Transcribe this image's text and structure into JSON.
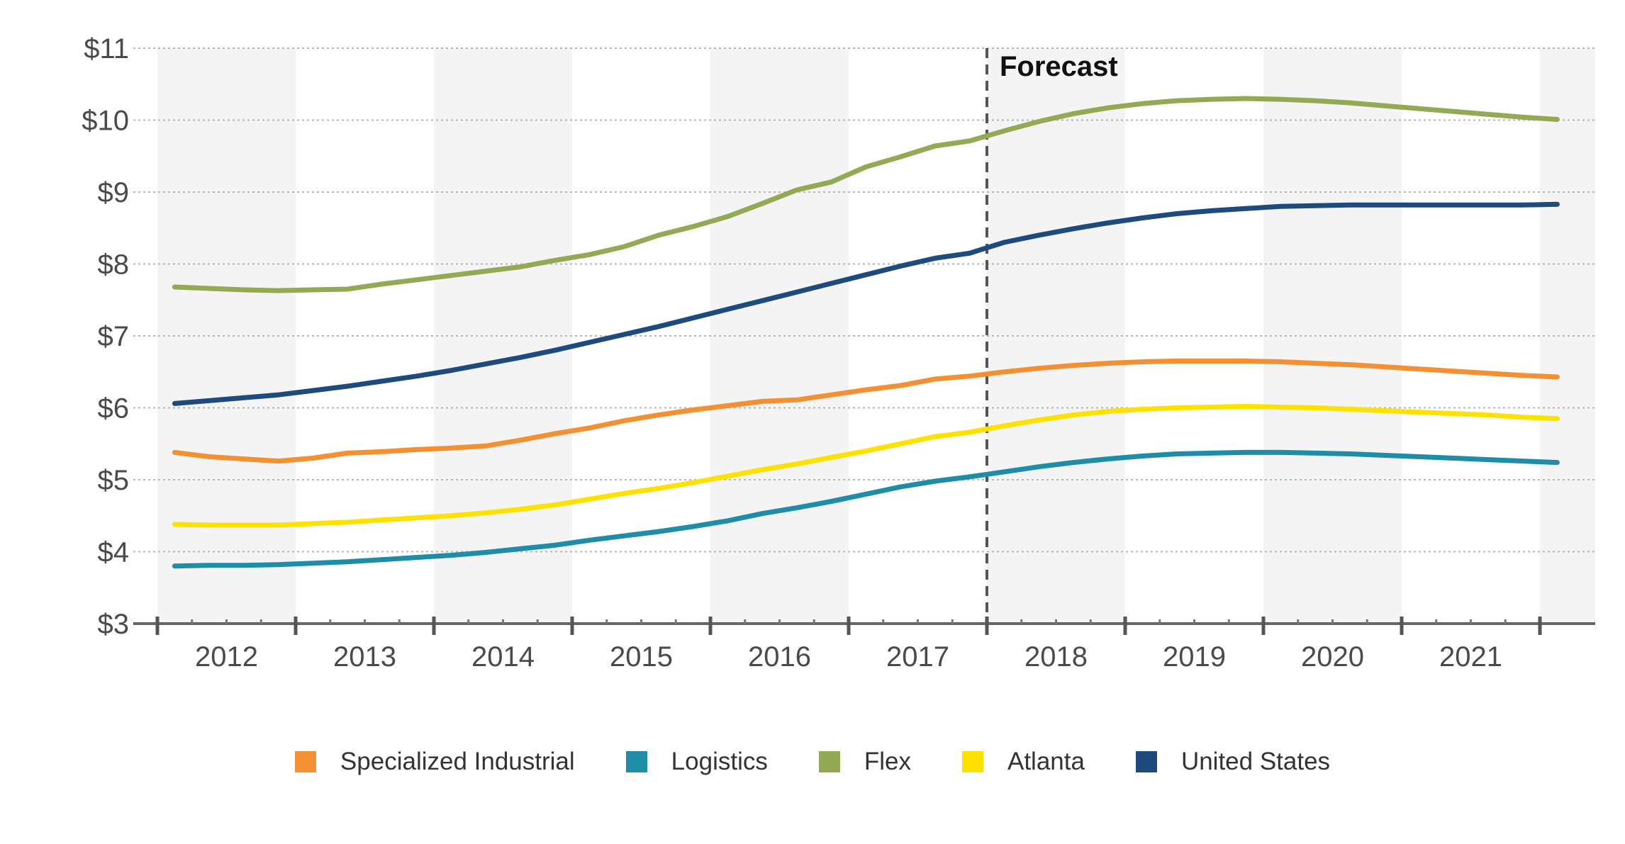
{
  "chart_data": {
    "type": "line",
    "title": "",
    "xlabel": "",
    "ylabel": "",
    "ylim": [
      3,
      11
    ],
    "y_ticks": [
      "$3",
      "$4",
      "$5",
      "$6",
      "$7",
      "$8",
      "$9",
      "$10",
      "$11"
    ],
    "x_categories": [
      "2012",
      "2013",
      "2014",
      "2015",
      "2016",
      "2017",
      "2018",
      "2019",
      "2020",
      "2021"
    ],
    "x_range": [
      2011.5,
      2021.9
    ],
    "grid": "horizontal dotted",
    "alternating_year_bands": true,
    "forecast": {
      "label": "Forecast",
      "start": 2017.5
    },
    "legend_position": "bottom",
    "series": [
      {
        "name": "Specialized Industrial",
        "color": "#F39034",
        "points": [
          [
            2011.625,
            5.38
          ],
          [
            2011.875,
            5.32
          ],
          [
            2012.125,
            5.29
          ],
          [
            2012.375,
            5.26
          ],
          [
            2012.625,
            5.3
          ],
          [
            2012.875,
            5.37
          ],
          [
            2013.125,
            5.39
          ],
          [
            2013.375,
            5.42
          ],
          [
            2013.625,
            5.44
          ],
          [
            2013.875,
            5.47
          ],
          [
            2014.125,
            5.55
          ],
          [
            2014.375,
            5.64
          ],
          [
            2014.625,
            5.72
          ],
          [
            2014.875,
            5.82
          ],
          [
            2015.125,
            5.9
          ],
          [
            2015.375,
            5.97
          ],
          [
            2015.625,
            6.03
          ],
          [
            2015.875,
            6.09
          ],
          [
            2016.125,
            6.11
          ],
          [
            2016.375,
            6.18
          ],
          [
            2016.625,
            6.25
          ],
          [
            2016.875,
            6.31
          ],
          [
            2017.125,
            6.4
          ],
          [
            2017.375,
            6.44
          ],
          [
            2017.625,
            6.5
          ],
          [
            2017.875,
            6.55
          ],
          [
            2018.125,
            6.59
          ],
          [
            2018.375,
            6.62
          ],
          [
            2018.625,
            6.64
          ],
          [
            2018.875,
            6.65
          ],
          [
            2019.125,
            6.65
          ],
          [
            2019.375,
            6.65
          ],
          [
            2019.625,
            6.64
          ],
          [
            2019.875,
            6.62
          ],
          [
            2020.125,
            6.6
          ],
          [
            2020.375,
            6.57
          ],
          [
            2020.625,
            6.54
          ],
          [
            2020.875,
            6.51
          ],
          [
            2021.125,
            6.48
          ],
          [
            2021.375,
            6.45
          ],
          [
            2021.625,
            6.43
          ]
        ]
      },
      {
        "name": "Logistics",
        "color": "#1F8CA8",
        "points": [
          [
            2011.625,
            3.8
          ],
          [
            2011.875,
            3.81
          ],
          [
            2012.125,
            3.81
          ],
          [
            2012.375,
            3.82
          ],
          [
            2012.625,
            3.84
          ],
          [
            2012.875,
            3.86
          ],
          [
            2013.125,
            3.89
          ],
          [
            2013.375,
            3.92
          ],
          [
            2013.625,
            3.95
          ],
          [
            2013.875,
            3.99
          ],
          [
            2014.125,
            4.04
          ],
          [
            2014.375,
            4.09
          ],
          [
            2014.625,
            4.16
          ],
          [
            2014.875,
            4.22
          ],
          [
            2015.125,
            4.28
          ],
          [
            2015.375,
            4.35
          ],
          [
            2015.625,
            4.43
          ],
          [
            2015.875,
            4.53
          ],
          [
            2016.125,
            4.61
          ],
          [
            2016.375,
            4.7
          ],
          [
            2016.625,
            4.8
          ],
          [
            2016.875,
            4.9
          ],
          [
            2017.125,
            4.98
          ],
          [
            2017.375,
            5.04
          ],
          [
            2017.625,
            5.11
          ],
          [
            2017.875,
            5.18
          ],
          [
            2018.125,
            5.24
          ],
          [
            2018.375,
            5.29
          ],
          [
            2018.625,
            5.33
          ],
          [
            2018.875,
            5.36
          ],
          [
            2019.125,
            5.37
          ],
          [
            2019.375,
            5.38
          ],
          [
            2019.625,
            5.38
          ],
          [
            2019.875,
            5.37
          ],
          [
            2020.125,
            5.36
          ],
          [
            2020.375,
            5.34
          ],
          [
            2020.625,
            5.32
          ],
          [
            2020.875,
            5.3
          ],
          [
            2021.125,
            5.28
          ],
          [
            2021.375,
            5.26
          ],
          [
            2021.625,
            5.24
          ]
        ]
      },
      {
        "name": "Flex",
        "color": "#93A954",
        "points": [
          [
            2011.625,
            7.68
          ],
          [
            2011.875,
            7.66
          ],
          [
            2012.125,
            7.64
          ],
          [
            2012.375,
            7.63
          ],
          [
            2012.625,
            7.64
          ],
          [
            2012.875,
            7.65
          ],
          [
            2013.125,
            7.72
          ],
          [
            2013.375,
            7.78
          ],
          [
            2013.625,
            7.84
          ],
          [
            2013.875,
            7.9
          ],
          [
            2014.125,
            7.96
          ],
          [
            2014.375,
            8.05
          ],
          [
            2014.625,
            8.13
          ],
          [
            2014.875,
            8.24
          ],
          [
            2015.125,
            8.4
          ],
          [
            2015.375,
            8.52
          ],
          [
            2015.625,
            8.66
          ],
          [
            2015.875,
            8.84
          ],
          [
            2016.125,
            9.03
          ],
          [
            2016.375,
            9.14
          ],
          [
            2016.625,
            9.35
          ],
          [
            2016.875,
            9.49
          ],
          [
            2017.125,
            9.64
          ],
          [
            2017.375,
            9.71
          ],
          [
            2017.625,
            9.85
          ],
          [
            2017.875,
            9.98
          ],
          [
            2018.125,
            10.09
          ],
          [
            2018.375,
            10.17
          ],
          [
            2018.625,
            10.23
          ],
          [
            2018.875,
            10.27
          ],
          [
            2019.125,
            10.29
          ],
          [
            2019.375,
            10.3
          ],
          [
            2019.625,
            10.29
          ],
          [
            2019.875,
            10.27
          ],
          [
            2020.125,
            10.24
          ],
          [
            2020.375,
            10.2
          ],
          [
            2020.625,
            10.16
          ],
          [
            2020.875,
            10.12
          ],
          [
            2021.125,
            10.08
          ],
          [
            2021.375,
            10.04
          ],
          [
            2021.625,
            10.01
          ]
        ]
      },
      {
        "name": "Atlanta",
        "color": "#FFE100",
        "points": [
          [
            2011.625,
            4.38
          ],
          [
            2011.875,
            4.37
          ],
          [
            2012.125,
            4.37
          ],
          [
            2012.375,
            4.37
          ],
          [
            2012.625,
            4.39
          ],
          [
            2012.875,
            4.41
          ],
          [
            2013.125,
            4.44
          ],
          [
            2013.375,
            4.47
          ],
          [
            2013.625,
            4.5
          ],
          [
            2013.875,
            4.54
          ],
          [
            2014.125,
            4.59
          ],
          [
            2014.375,
            4.65
          ],
          [
            2014.625,
            4.73
          ],
          [
            2014.875,
            4.81
          ],
          [
            2015.125,
            4.88
          ],
          [
            2015.375,
            4.96
          ],
          [
            2015.625,
            5.05
          ],
          [
            2015.875,
            5.14
          ],
          [
            2016.125,
            5.22
          ],
          [
            2016.375,
            5.31
          ],
          [
            2016.625,
            5.4
          ],
          [
            2016.875,
            5.5
          ],
          [
            2017.125,
            5.6
          ],
          [
            2017.375,
            5.66
          ],
          [
            2017.625,
            5.75
          ],
          [
            2017.875,
            5.83
          ],
          [
            2018.125,
            5.9
          ],
          [
            2018.375,
            5.95
          ],
          [
            2018.625,
            5.98
          ],
          [
            2018.875,
            6.0
          ],
          [
            2019.125,
            6.01
          ],
          [
            2019.375,
            6.02
          ],
          [
            2019.625,
            6.01
          ],
          [
            2019.875,
            6.0
          ],
          [
            2020.125,
            5.98
          ],
          [
            2020.375,
            5.96
          ],
          [
            2020.625,
            5.94
          ],
          [
            2020.875,
            5.92
          ],
          [
            2021.125,
            5.9
          ],
          [
            2021.375,
            5.87
          ],
          [
            2021.625,
            5.85
          ]
        ]
      },
      {
        "name": "United States",
        "color": "#1E4A7E",
        "points": [
          [
            2011.625,
            6.06
          ],
          [
            2011.875,
            6.1
          ],
          [
            2012.125,
            6.14
          ],
          [
            2012.375,
            6.18
          ],
          [
            2012.625,
            6.24
          ],
          [
            2012.875,
            6.3
          ],
          [
            2013.125,
            6.37
          ],
          [
            2013.375,
            6.44
          ],
          [
            2013.625,
            6.52
          ],
          [
            2013.875,
            6.61
          ],
          [
            2014.125,
            6.7
          ],
          [
            2014.375,
            6.8
          ],
          [
            2014.625,
            6.91
          ],
          [
            2014.875,
            7.02
          ],
          [
            2015.125,
            7.13
          ],
          [
            2015.375,
            7.25
          ],
          [
            2015.625,
            7.37
          ],
          [
            2015.875,
            7.49
          ],
          [
            2016.125,
            7.61
          ],
          [
            2016.375,
            7.73
          ],
          [
            2016.625,
            7.85
          ],
          [
            2016.875,
            7.97
          ],
          [
            2017.125,
            8.08
          ],
          [
            2017.375,
            8.15
          ],
          [
            2017.625,
            8.3
          ],
          [
            2017.875,
            8.4
          ],
          [
            2018.125,
            8.49
          ],
          [
            2018.375,
            8.57
          ],
          [
            2018.625,
            8.64
          ],
          [
            2018.875,
            8.7
          ],
          [
            2019.125,
            8.74
          ],
          [
            2019.375,
            8.77
          ],
          [
            2019.625,
            8.8
          ],
          [
            2019.875,
            8.81
          ],
          [
            2020.125,
            8.82
          ],
          [
            2020.375,
            8.82
          ],
          [
            2020.625,
            8.82
          ],
          [
            2020.875,
            8.82
          ],
          [
            2021.125,
            8.82
          ],
          [
            2021.375,
            8.82
          ],
          [
            2021.625,
            8.83
          ]
        ]
      }
    ]
  }
}
